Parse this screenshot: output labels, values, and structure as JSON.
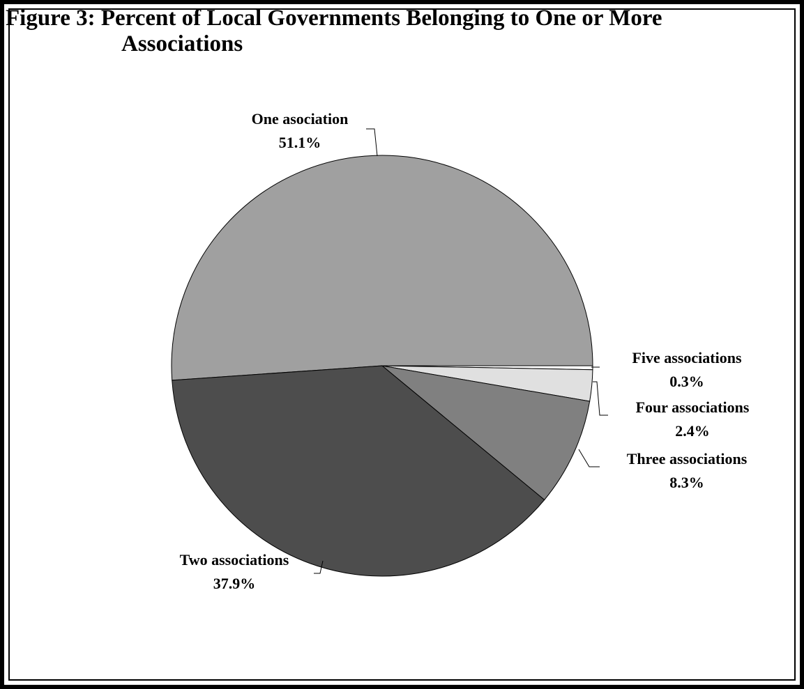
{
  "chart_data": {
    "type": "pie",
    "title_line1": "Figure 3: Percent of Local Governments Belonging to One or More",
    "title_line2": "Associations",
    "slices": [
      {
        "label": "One asociation",
        "value": 51.1,
        "value_label": "51.1%",
        "color": "#a0a0a0"
      },
      {
        "label": "Five associations",
        "value": 0.3,
        "value_label": "0.3%",
        "color": "#ffffff"
      },
      {
        "label": "Four associations",
        "value": 2.4,
        "value_label": "2.4%",
        "color": "#e0e0e0"
      },
      {
        "label": "Three associations",
        "value": 8.3,
        "value_label": "8.3%",
        "color": "#808080"
      },
      {
        "label": "Two associations",
        "value": 37.9,
        "value_label": "37.9%",
        "color": "#4d4d4d"
      }
    ]
  }
}
